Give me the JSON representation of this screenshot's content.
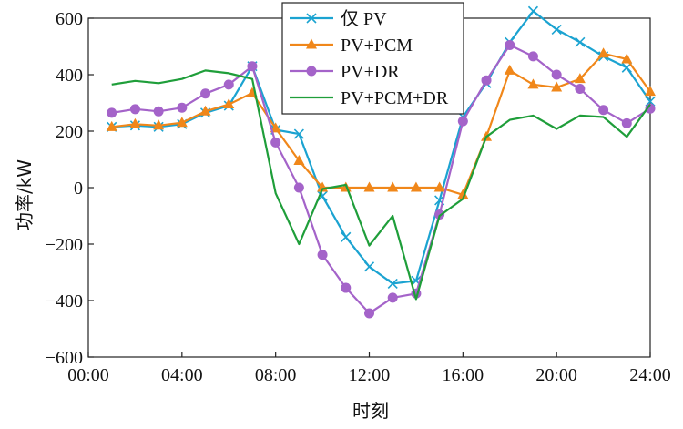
{
  "chart_data": {
    "type": "line",
    "xlabel": "时刻",
    "ylabel": "功率/kW",
    "x_ticks": [
      "00:00",
      "04:00",
      "08:00",
      "12:00",
      "16:00",
      "20:00",
      "24:00"
    ],
    "y_ticks": [
      -600,
      -400,
      -200,
      0,
      200,
      400,
      600
    ],
    "xlim": [
      0,
      24
    ],
    "ylim": [
      -600,
      600
    ],
    "grid": false,
    "legend_position": "top-center",
    "x": [
      1,
      2,
      3,
      4,
      5,
      6,
      7,
      8,
      9,
      10,
      11,
      12,
      13,
      14,
      15,
      16,
      17,
      18,
      19,
      20,
      21,
      22,
      23,
      24
    ],
    "series": [
      {
        "name": "仅 PV",
        "color": "#1ba3d1",
        "marker": "x",
        "values": [
          215,
          220,
          215,
          225,
          265,
          290,
          430,
          205,
          190,
          -30,
          -175,
          -280,
          -340,
          -330,
          -45,
          250,
          370,
          515,
          625,
          560,
          515,
          465,
          425,
          305
        ]
      },
      {
        "name": "PV+PCM",
        "color": "#f0871a",
        "marker": "triangle",
        "values": [
          215,
          225,
          220,
          230,
          270,
          295,
          335,
          210,
          95,
          0,
          0,
          0,
          0,
          0,
          0,
          -25,
          180,
          415,
          365,
          355,
          385,
          475,
          455,
          340
        ]
      },
      {
        "name": "PV+DR",
        "color": "#a463c9",
        "marker": "circle",
        "values": [
          265,
          278,
          270,
          283,
          333,
          365,
          430,
          160,
          0,
          -238,
          -355,
          -445,
          -390,
          -375,
          -95,
          235,
          380,
          505,
          465,
          400,
          350,
          275,
          228,
          280
        ]
      },
      {
        "name": "PV+PCM+DR",
        "color": "#1f9e3a",
        "marker": "none",
        "values": [
          365,
          378,
          370,
          385,
          415,
          405,
          385,
          -20,
          -200,
          -5,
          10,
          -205,
          -100,
          -395,
          -100,
          -40,
          180,
          240,
          255,
          208,
          255,
          250,
          180,
          295
        ]
      }
    ]
  }
}
